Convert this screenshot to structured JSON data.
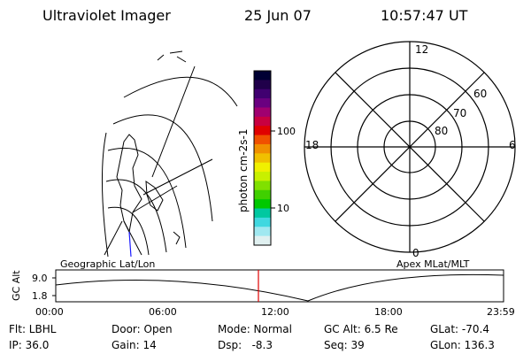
{
  "header": {
    "instrument": "Ultraviolet Imager",
    "date": "25 Jun 07",
    "time": "10:57:47 UT"
  },
  "colorbar": {
    "unit_label": "photon cm-2s-1",
    "tick_labels": [
      "100",
      "10"
    ],
    "colors": [
      "#000033",
      "#20004a",
      "#400070",
      "#6a0080",
      "#a00070",
      "#c80040",
      "#e00000",
      "#f05000",
      "#f09000",
      "#f0c000",
      "#f0f000",
      "#c8f000",
      "#80e000",
      "#40d000",
      "#00c800",
      "#00c8a0",
      "#40d8e0",
      "#a0e8f0",
      "#e0f0f0"
    ]
  },
  "geo_map": {
    "title": "Geographic Lat/Lon"
  },
  "polar_plot": {
    "title": "Apex MLat/MLT",
    "mlt_labels": [
      "12",
      "18",
      "6",
      "0"
    ],
    "mlat_labels": [
      "60",
      "70",
      "80"
    ]
  },
  "orbit_plot": {
    "ylabel": "GC Alt",
    "y_ticks": [
      "9.0",
      "1.8"
    ],
    "x_ticks": [
      "00:00",
      "06:00",
      "12:00",
      "18:00",
      "23:59"
    ],
    "current_time_color": "#e00000"
  },
  "status": {
    "filter": "Flt: LBHL",
    "door": "Door: Open",
    "mode": "Mode: Normal",
    "gc_alt": "GC Alt: 6.5 Re",
    "glat": "GLat: -70.4",
    "ip": "IP: 36.0",
    "gain": "Gain: 14",
    "dsp": "Dsp:   -8.3",
    "seq": "Seq: 39",
    "glon": "GLon: 136.3"
  }
}
